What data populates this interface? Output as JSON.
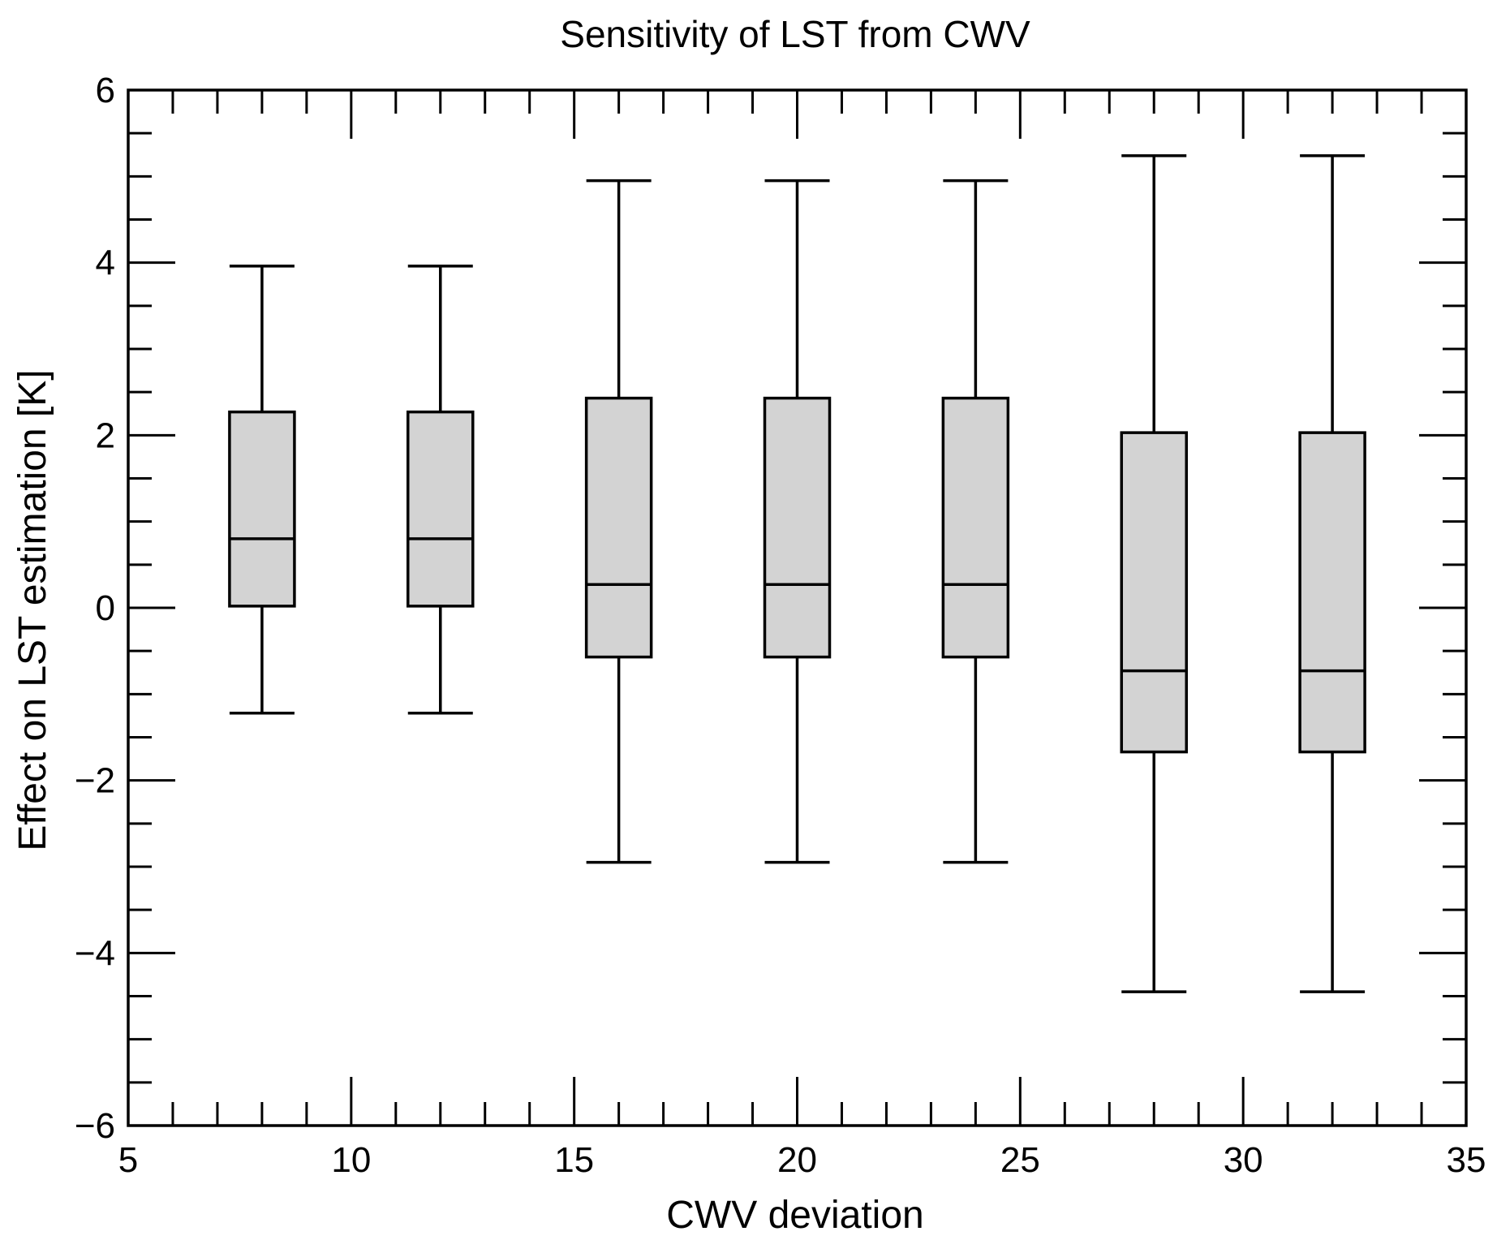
{
  "chart_data": {
    "type": "box",
    "title": "Sensitivity of LST from CWV",
    "xlabel": "CWV deviation",
    "ylabel": "Effect on LST estimation [K]",
    "xlim": [
      5,
      35
    ],
    "ylim": [
      -6,
      6
    ],
    "x_ticks": [
      5,
      10,
      15,
      20,
      25,
      30,
      35
    ],
    "x_tick_labels": [
      "5",
      "10",
      "15",
      "20",
      "25",
      "30",
      "35"
    ],
    "y_ticks": [
      -6,
      -4,
      -2,
      0,
      2,
      4,
      6
    ],
    "y_tick_labels": [
      "−6",
      "−4",
      "−2",
      "0",
      "2",
      "4",
      "6"
    ],
    "grid": false,
    "box_fill": "#d3d3d3",
    "line_color": "#000000",
    "boxes": [
      {
        "x": 8,
        "whisker_low": -1.22,
        "q1": 0.02,
        "median": 0.8,
        "q3": 2.27,
        "whisker_high": 3.96
      },
      {
        "x": 12,
        "whisker_low": -1.22,
        "q1": 0.02,
        "median": 0.8,
        "q3": 2.27,
        "whisker_high": 3.96
      },
      {
        "x": 16,
        "whisker_low": -2.95,
        "q1": -0.57,
        "median": 0.27,
        "q3": 2.43,
        "whisker_high": 4.95
      },
      {
        "x": 20,
        "whisker_low": -2.95,
        "q1": -0.57,
        "median": 0.27,
        "q3": 2.43,
        "whisker_high": 4.95
      },
      {
        "x": 24,
        "whisker_low": -2.95,
        "q1": -0.57,
        "median": 0.27,
        "q3": 2.43,
        "whisker_high": 4.95
      },
      {
        "x": 28,
        "whisker_low": -4.45,
        "q1": -1.67,
        "median": -0.73,
        "q3": 2.03,
        "whisker_high": 5.24
      },
      {
        "x": 32,
        "whisker_low": -4.45,
        "q1": -1.67,
        "median": -0.73,
        "q3": 2.03,
        "whisker_high": 5.24
      }
    ]
  }
}
